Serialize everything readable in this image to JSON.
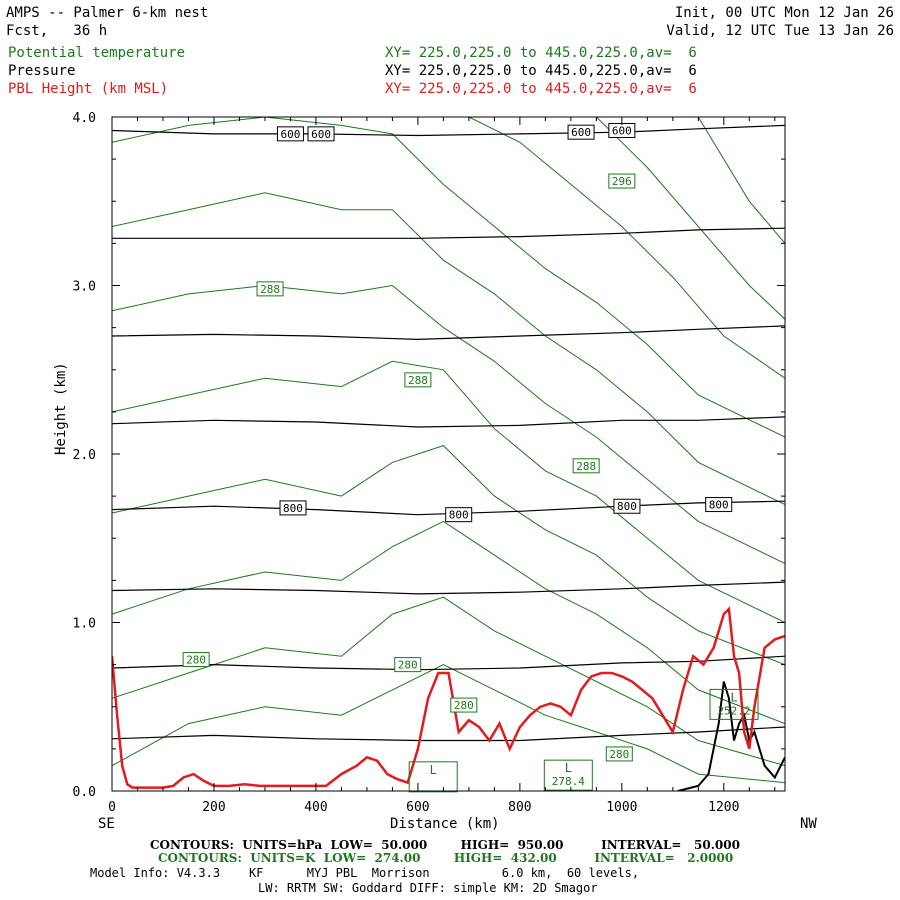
{
  "header": {
    "title": "AMPS -- Palmer 6-km nest",
    "fcst": "Fcst,   36 h",
    "init": "Init, 00 UTC Mon 12 Jan 26",
    "valid": "Valid, 12 UTC Tue 13 Jan 26",
    "fields": [
      {
        "name": "Potential temperature",
        "xy": "XY= 225.0,225.0 to 445.0,225.0,av=  6",
        "color": "#1a7a1a"
      },
      {
        "name": "Pressure",
        "xy": "XY= 225.0,225.0 to 445.0,225.0,av=  6",
        "color": "#000000"
      },
      {
        "name": "PBL Height (km MSL)",
        "xy": "XY= 225.0,225.0 to 445.0,225.0,av=  6",
        "color": "#e41a1c"
      }
    ]
  },
  "axes": {
    "xlabel": "Distance (km)",
    "ylabel": "Height (km)",
    "left_end": "SE",
    "right_end": "NW",
    "x_ticks": [
      "0",
      "200",
      "400",
      "600",
      "800",
      "1000",
      "1200"
    ],
    "y_ticks": [
      "0.0",
      "1.0",
      "2.0",
      "3.0",
      "4.0"
    ]
  },
  "footer": {
    "line1": "CONTOURS:  UNITS=hPa  LOW=  50.000        HIGH=  950.00         INTERVAL=   50.000",
    "line2": "CONTOURS:  UNITS=K  LOW=  274.00        HIGH=  432.00         INTERVAL=   2.0000",
    "line3": "Model Info: V4.3.3    KF      MYJ PBL  Morrison          6.0 km,  60 levels,",
    "line4": "LW: RRTM SW: Goddard DIFF: simple KM: 2D Smagor"
  },
  "chart_data": {
    "type": "line",
    "xlim": [
      0,
      1320
    ],
    "ylim": [
      0.0,
      4.0
    ],
    "x_unit": "km",
    "y_unit": "km",
    "pressure_labels": [
      {
        "text": "600",
        "x": 350,
        "y": 3.9
      },
      {
        "text": "600",
        "x": 410,
        "y": 3.9
      },
      {
        "text": "600",
        "x": 920,
        "y": 3.91
      },
      {
        "text": "600",
        "x": 1000,
        "y": 3.92
      },
      {
        "text": "800",
        "x": 355,
        "y": 1.68
      },
      {
        "text": "800",
        "x": 680,
        "y": 1.64
      },
      {
        "text": "800",
        "x": 1010,
        "y": 1.69
      },
      {
        "text": "800",
        "x": 1190,
        "y": 1.7
      }
    ],
    "theta_labels": [
      {
        "text": "296",
        "x": 1000,
        "y": 3.62
      },
      {
        "text": "288",
        "x": 310,
        "y": 2.98
      },
      {
        "text": "288",
        "x": 600,
        "y": 2.44
      },
      {
        "text": "288",
        "x": 930,
        "y": 1.93
      },
      {
        "text": "280",
        "x": 165,
        "y": 0.78
      },
      {
        "text": "280",
        "x": 580,
        "y": 0.75
      },
      {
        "text": "280",
        "x": 690,
        "y": 0.51
      },
      {
        "text": "280",
        "x": 995,
        "y": 0.22
      }
    ],
    "low_markers": [
      {
        "text": "L",
        "value": "",
        "x": 630,
        "y": 0.09
      },
      {
        "text": "L",
        "value": "278.4",
        "x": 895,
        "y": 0.1
      },
      {
        "text": "L",
        "value": "252.2",
        "x": 1220,
        "y": 0.52
      }
    ],
    "pressure_lines": [
      {
        "x": [
          0,
          200,
          400,
          600,
          800,
          1000,
          1150,
          1320
        ],
        "y": [
          3.92,
          3.9,
          3.9,
          3.89,
          3.9,
          3.91,
          3.93,
          3.95
        ]
      },
      {
        "x": [
          0,
          200,
          400,
          600,
          800,
          1000,
          1150,
          1320
        ],
        "y": [
          3.28,
          3.28,
          3.28,
          3.28,
          3.29,
          3.31,
          3.33,
          3.34
        ]
      },
      {
        "x": [
          0,
          200,
          400,
          600,
          800,
          1000,
          1150,
          1320
        ],
        "y": [
          2.7,
          2.71,
          2.7,
          2.68,
          2.7,
          2.72,
          2.74,
          2.76
        ]
      },
      {
        "x": [
          0,
          200,
          400,
          600,
          800,
          1000,
          1150,
          1320
        ],
        "y": [
          2.18,
          2.2,
          2.19,
          2.16,
          2.17,
          2.2,
          2.2,
          2.22
        ]
      },
      {
        "x": [
          0,
          200,
          400,
          600,
          800,
          1000,
          1150,
          1320
        ],
        "y": [
          1.67,
          1.69,
          1.67,
          1.64,
          1.66,
          1.69,
          1.71,
          1.72
        ]
      },
      {
        "x": [
          0,
          200,
          400,
          600,
          800,
          1000,
          1150,
          1320
        ],
        "y": [
          1.19,
          1.2,
          1.19,
          1.17,
          1.18,
          1.2,
          1.22,
          1.24
        ]
      },
      {
        "x": [
          0,
          200,
          400,
          600,
          800,
          1000,
          1150,
          1320
        ],
        "y": [
          0.73,
          0.75,
          0.73,
          0.72,
          0.73,
          0.76,
          0.77,
          0.8
        ]
      },
      {
        "x": [
          0,
          200,
          400,
          600,
          800,
          1000,
          1150,
          1320
        ],
        "y": [
          0.31,
          0.33,
          0.31,
          0.3,
          0.3,
          0.33,
          0.35,
          0.38
        ]
      }
    ],
    "theta_lines": [
      {
        "x": [
          0,
          150,
          300,
          450,
          550,
          650,
          750,
          850,
          950,
          1050,
          1150,
          1320
        ],
        "y": [
          0.15,
          0.4,
          0.5,
          0.45,
          0.6,
          0.75,
          0.6,
          0.45,
          0.35,
          0.25,
          0.1,
          0.05
        ]
      },
      {
        "x": [
          0,
          150,
          300,
          450,
          550,
          650,
          750,
          850,
          950,
          1050,
          1150,
          1320
        ],
        "y": [
          0.55,
          0.7,
          0.85,
          0.8,
          1.05,
          1.15,
          0.95,
          0.8,
          0.65,
          0.5,
          0.3,
          0.15
        ]
      },
      {
        "x": [
          0,
          150,
          300,
          450,
          550,
          650,
          750,
          850,
          950,
          1050,
          1150,
          1320
        ],
        "y": [
          1.05,
          1.2,
          1.3,
          1.25,
          1.45,
          1.6,
          1.4,
          1.2,
          1.05,
          0.85,
          0.6,
          0.4
        ]
      },
      {
        "x": [
          0,
          150,
          300,
          450,
          550,
          650,
          750,
          850,
          950,
          1050,
          1150,
          1320
        ],
        "y": [
          1.65,
          1.75,
          1.85,
          1.75,
          1.95,
          2.05,
          1.75,
          1.55,
          1.4,
          1.15,
          0.95,
          0.75
        ]
      },
      {
        "x": [
          0,
          150,
          300,
          450,
          550,
          650,
          750,
          850,
          950,
          1050,
          1150,
          1320
        ],
        "y": [
          2.25,
          2.35,
          2.45,
          2.4,
          2.55,
          2.5,
          2.15,
          1.9,
          1.75,
          1.5,
          1.25,
          1.0
        ]
      },
      {
        "x": [
          0,
          150,
          300,
          450,
          550,
          650,
          750,
          850,
          950,
          1050,
          1150,
          1320
        ],
        "y": [
          2.85,
          2.95,
          3.0,
          2.95,
          3.0,
          2.75,
          2.55,
          2.3,
          2.1,
          1.85,
          1.6,
          1.35
        ]
      },
      {
        "x": [
          0,
          150,
          300,
          450,
          550,
          650,
          750,
          850,
          950,
          1050,
          1150,
          1320
        ],
        "y": [
          3.35,
          3.45,
          3.55,
          3.45,
          3.45,
          3.15,
          2.95,
          2.7,
          2.5,
          2.25,
          1.95,
          1.7
        ]
      },
      {
        "x": [
          0,
          150,
          300,
          450,
          550,
          650,
          750,
          850,
          950,
          1050,
          1150,
          1320
        ],
        "y": [
          3.85,
          3.95,
          4.0,
          3.95,
          3.9,
          3.6,
          3.35,
          3.1,
          2.9,
          2.65,
          2.35,
          2.1
        ]
      },
      {
        "x": [
          700,
          800,
          900,
          1000,
          1100,
          1200,
          1320
        ],
        "y": [
          4.0,
          3.85,
          3.6,
          3.35,
          3.05,
          2.7,
          2.45
        ]
      },
      {
        "x": [
          950,
          1050,
          1150,
          1250,
          1320
        ],
        "y": [
          4.0,
          3.7,
          3.35,
          3.0,
          2.8
        ]
      },
      {
        "x": [
          1150,
          1250,
          1320
        ],
        "y": [
          4.0,
          3.5,
          3.25
        ]
      }
    ],
    "terrain": {
      "x": [
        1110,
        1150,
        1170,
        1190,
        1200,
        1210,
        1220,
        1230,
        1240,
        1250,
        1260,
        1270,
        1280,
        1300,
        1320
      ],
      "y": [
        0.0,
        0.03,
        0.1,
        0.4,
        0.65,
        0.55,
        0.3,
        0.4,
        0.45,
        0.3,
        0.35,
        0.25,
        0.15,
        0.08,
        0.2
      ]
    },
    "pbl_height": {
      "x": [
        0,
        10,
        20,
        30,
        40,
        60,
        80,
        100,
        120,
        140,
        160,
        180,
        200,
        230,
        260,
        290,
        320,
        350,
        380,
        420,
        450,
        480,
        500,
        520,
        540,
        560,
        580,
        600,
        620,
        640,
        660,
        680,
        700,
        720,
        740,
        760,
        780,
        800,
        820,
        840,
        860,
        880,
        900,
        920,
        940,
        960,
        980,
        1000,
        1020,
        1040,
        1060,
        1080,
        1100,
        1120,
        1140,
        1160,
        1180,
        1200,
        1210,
        1220,
        1230,
        1240,
        1250,
        1260,
        1280,
        1300,
        1320
      ],
      "y": [
        0.8,
        0.45,
        0.15,
        0.04,
        0.02,
        0.02,
        0.02,
        0.02,
        0.03,
        0.08,
        0.1,
        0.06,
        0.03,
        0.03,
        0.04,
        0.03,
        0.03,
        0.03,
        0.03,
        0.03,
        0.1,
        0.15,
        0.2,
        0.18,
        0.1,
        0.07,
        0.05,
        0.25,
        0.55,
        0.7,
        0.7,
        0.35,
        0.42,
        0.38,
        0.3,
        0.4,
        0.25,
        0.38,
        0.45,
        0.5,
        0.52,
        0.5,
        0.45,
        0.6,
        0.68,
        0.7,
        0.7,
        0.68,
        0.65,
        0.6,
        0.55,
        0.45,
        0.35,
        0.6,
        0.8,
        0.75,
        0.85,
        1.05,
        1.08,
        0.8,
        0.7,
        0.35,
        0.25,
        0.5,
        0.85,
        0.9,
        0.92
      ]
    },
    "colors": {
      "theta": "#1a7a1a",
      "pressure": "#000000",
      "pbl": "#e41a1c"
    }
  }
}
